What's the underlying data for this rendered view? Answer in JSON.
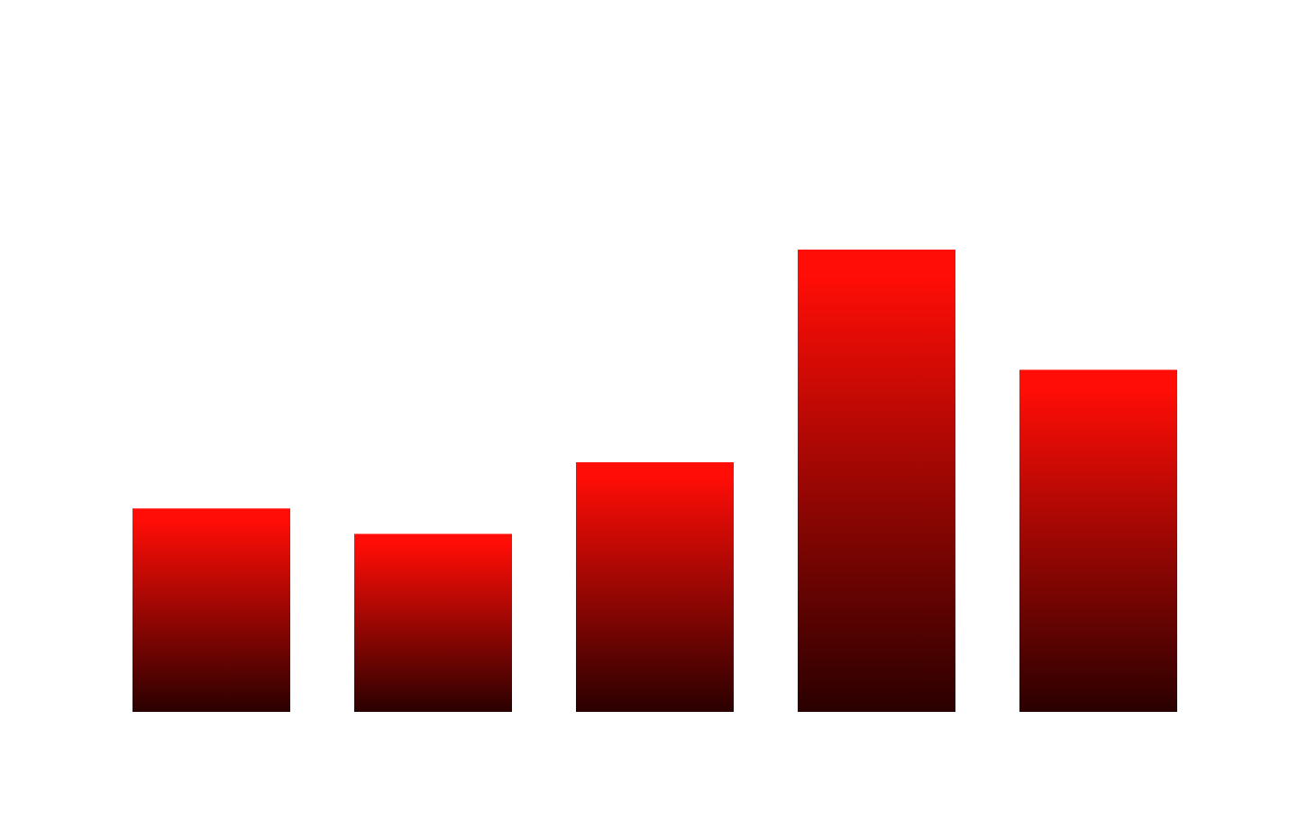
{
  "chart_data": {
    "type": "bar",
    "categories": [
      "",
      "",
      "",
      "",
      ""
    ],
    "values": [
      44,
      38.5,
      54,
      100,
      74
    ],
    "ylim": [
      0,
      100
    ],
    "grid": false,
    "legend": "none",
    "colors": {
      "bar_top": "#ff0d06",
      "bar_bottom": "#2a0000"
    }
  }
}
